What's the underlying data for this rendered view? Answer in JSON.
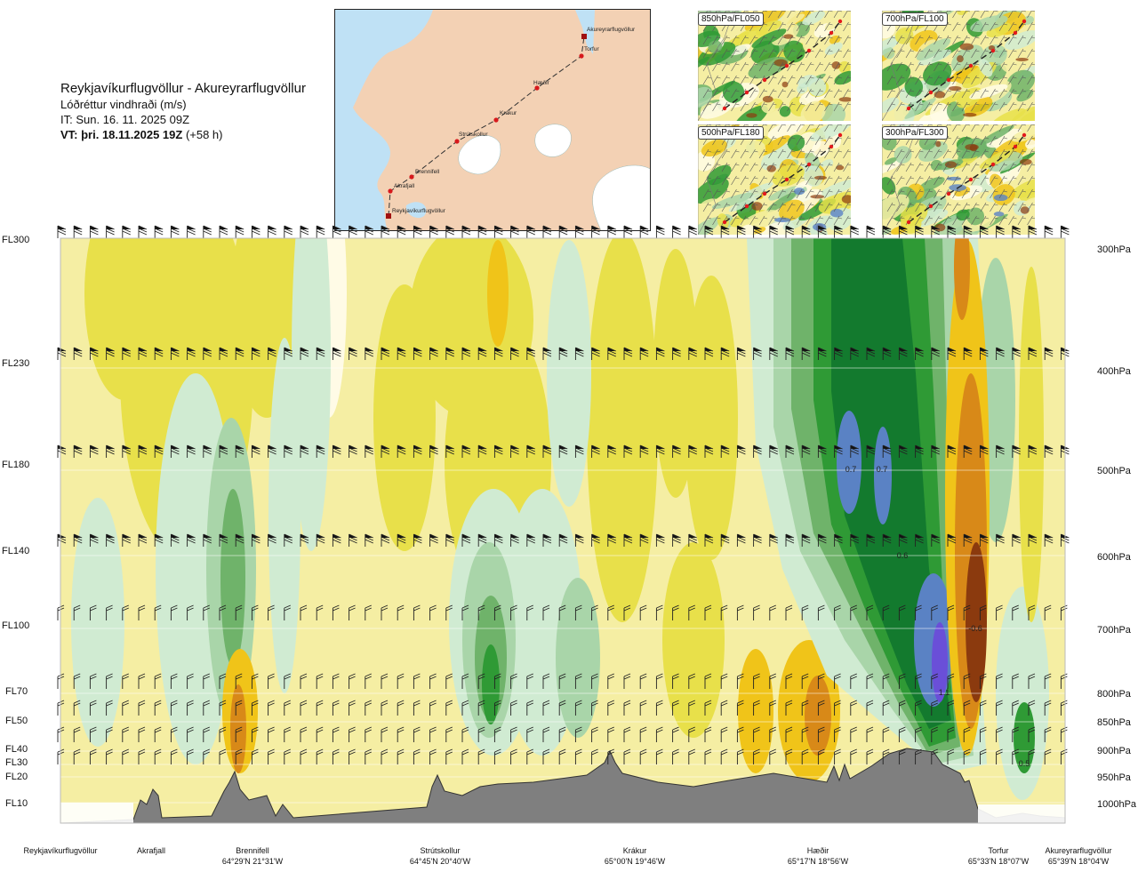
{
  "header": {
    "title": "Reykjavíkurflugvöllur - Akureyrarflugvöllur",
    "subtitle": "Lóðréttur vindhraði (m/s)",
    "issue_time": "IT: Sun. 16. 11. 2025 09Z",
    "valid_time": "VT: þri. 18.11.2025 19Z",
    "lead_time": "(+58 h)"
  },
  "route_map": {
    "points": [
      "Akureyrarflugvöllur",
      "Torfur",
      "Hæðir",
      "Krákur",
      "Strútskollur",
      "Brennifell",
      "Akrafjall",
      "Reykjavíkurflugvöllur"
    ],
    "colors": {
      "land": "#f3d1b4",
      "sea": "#bfe1f5",
      "ice": "#ffffff",
      "route": "#333333",
      "point": "#d7191c"
    }
  },
  "thumbnails": [
    {
      "label": "850hPa/FL050"
    },
    {
      "label": "700hPa/FL100"
    },
    {
      "label": "500hPa/FL180"
    },
    {
      "label": "300hPa/FL300"
    }
  ],
  "chart_data": {
    "type": "heatmap",
    "title": "Lóðréttur vindhraði (m/s)",
    "y_axis_left": [
      "FL300",
      "FL230",
      "FL180",
      "FL140",
      "FL100",
      "FL70",
      "FL50",
      "FL40",
      "FL30",
      "FL20",
      "FL10"
    ],
    "y_axis_right": [
      "300hPa",
      "400hPa",
      "500hPa",
      "600hPa",
      "700hPa",
      "800hPa",
      "850hPa",
      "900hPa",
      "950hPa",
      "1000hPa"
    ],
    "ylim_hpa": [
      1000,
      300
    ],
    "stations": [
      {
        "name": "Reykjavíkurflugvöllur",
        "coord": ""
      },
      {
        "name": "Akrafjall",
        "coord": ""
      },
      {
        "name": "Brennifell",
        "coord": "64°29'N 21°31'W"
      },
      {
        "name": "Strútskollur",
        "coord": "64°45'N 20°40'W"
      },
      {
        "name": "Krákur",
        "coord": "65°00'N 19°46'W"
      },
      {
        "name": "Hæðir",
        "coord": "65°17'N 18°56'W"
      },
      {
        "name": "Torfur",
        "coord": "65°33'N 18°07'W"
      },
      {
        "name": "Akureyrarflugvöllur",
        "coord": "65°39'N 18°04'W"
      }
    ],
    "contour_labels": [
      "0.7",
      "0.7",
      "0.6",
      "-0.6",
      "1.1",
      "0.5"
    ],
    "colors": {
      "neg_strong": "#8b3a0e",
      "neg_mid": "#d88918",
      "neg_low": "#f0c419",
      "neg_weak": "#e8e04a",
      "neutral": "#f5eea3",
      "near_zero": "#fffbe6",
      "pos_weak": "#d0ebd2",
      "pos_low": "#a9d5a9",
      "pos_mid": "#6fb36a",
      "pos_high": "#2f9a35",
      "pos_strong": "#137a2e",
      "pos_max": "#5a82c4",
      "pos_extreme": "#6a4fd8",
      "terrain": "#7f7f7f"
    },
    "grid": true,
    "wind_barbs": true
  }
}
